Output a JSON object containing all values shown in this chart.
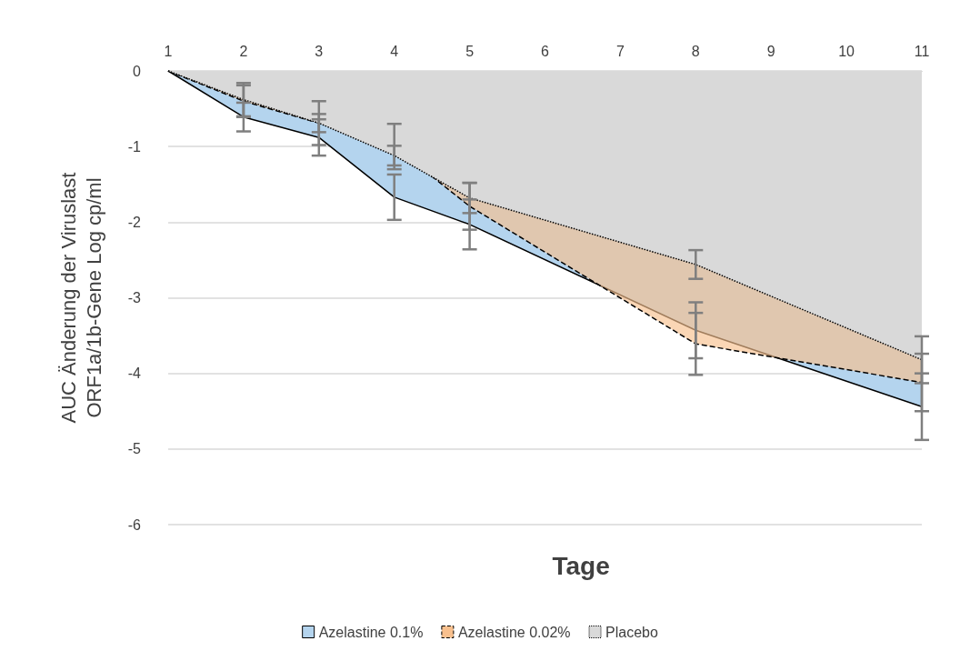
{
  "chart_data": {
    "type": "area",
    "xlabel": "Tage",
    "ylabel": "AUC Änderung der Viruslast\nORF1a/1b-Gene Log cp/ml",
    "xlim": [
      1,
      11
    ],
    "xticks": [
      1,
      2,
      3,
      4,
      5,
      6,
      7,
      8,
      9,
      10,
      11
    ],
    "ylim": [
      -6,
      0
    ],
    "yticks": [
      -6,
      -5,
      -4,
      -3,
      -2,
      -1,
      0
    ],
    "grid": "y",
    "legend": "bottom",
    "marker": "none",
    "series": [
      {
        "name": "Azelastine 0.1%",
        "color": "#b4d4ee",
        "line_style": "solid",
        "x": [
          1,
          2,
          3,
          4,
          5,
          8,
          11
        ],
        "values": [
          0,
          -0.61,
          -0.88,
          -1.67,
          -2.03,
          -3.43,
          -4.44
        ],
        "errors": [
          null,
          0.19,
          0.24,
          0.3,
          0.33,
          0.37,
          0.44
        ]
      },
      {
        "name": "Azelastine 0.02%",
        "color": "#f8c08e",
        "line_style": "dashed",
        "x": [
          1,
          2,
          3,
          4,
          5,
          8,
          11
        ],
        "values": [
          0,
          -0.4,
          -0.69,
          -1.0,
          -1.79,
          -3.61,
          -4.12
        ],
        "errors": [
          null,
          0.21,
          0.12,
          0.3,
          0.31,
          0.41,
          0.38
        ]
      },
      {
        "name": "Placebo",
        "color": "#d9d9d9",
        "line_style": "dotted",
        "x": [
          1,
          2,
          3,
          4,
          5,
          8,
          11
        ],
        "values": [
          0,
          -0.38,
          -0.69,
          -1.12,
          -1.68,
          -2.56,
          -3.82
        ],
        "errors": [
          null,
          0.22,
          0.29,
          0.13,
          0.2,
          0.19,
          0.31
        ]
      }
    ]
  }
}
